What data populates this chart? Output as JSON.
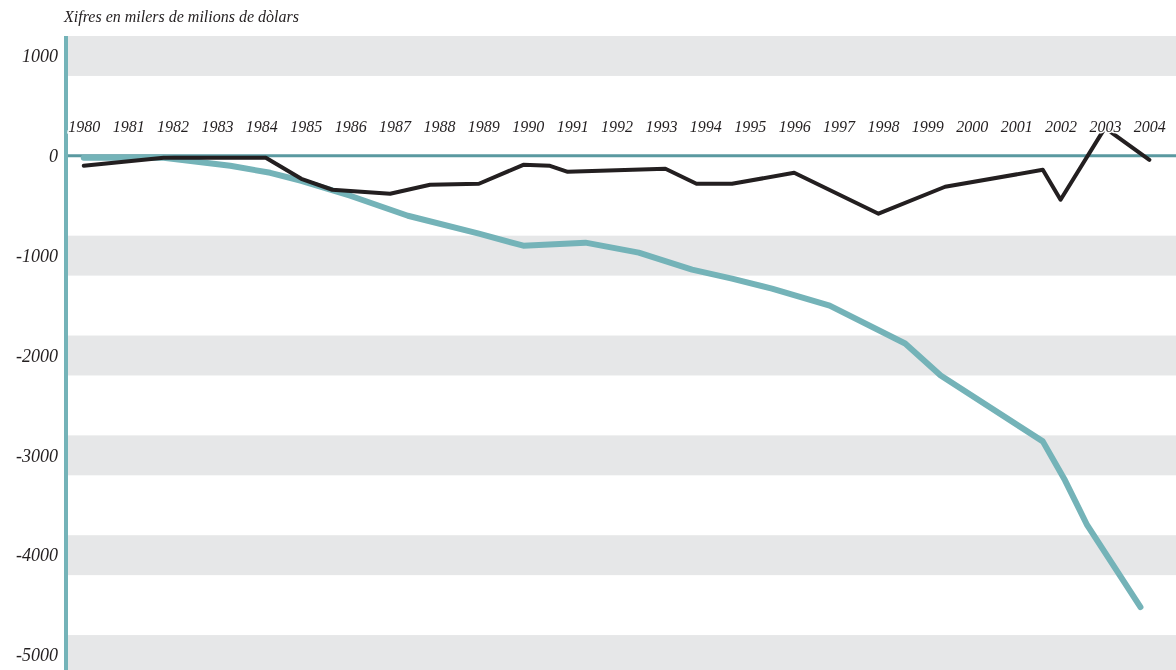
{
  "chart_data": {
    "type": "line",
    "ylabel": "Xifres en milers de milions de dòlars",
    "xlim": [
      1979.6,
      2004.6
    ],
    "xticks": [
      1980,
      1981,
      1982,
      1983,
      1984,
      1985,
      1986,
      1987,
      1988,
      1989,
      1990,
      1991,
      1992,
      1993,
      1994,
      1995,
      1996,
      1997,
      1998,
      1999,
      2000,
      2001,
      2002,
      2003,
      2004
    ],
    "ylim": [
      -5150,
      1200
    ],
    "yticks": [
      1000,
      0,
      -1000,
      -2000,
      -3000,
      -4000,
      -5000
    ],
    "bands": [
      {
        "axis": "y",
        "from": 800,
        "to": 1200,
        "color": "#e6e7e8"
      },
      {
        "axis": "y",
        "from": -1200,
        "to": -800,
        "color": "#e6e7e8"
      },
      {
        "axis": "y",
        "from": -2200,
        "to": -1800,
        "color": "#e6e7e8"
      },
      {
        "axis": "y",
        "from": -3200,
        "to": -2800,
        "color": "#e6e7e8"
      },
      {
        "axis": "y",
        "from": -4200,
        "to": -3800,
        "color": "#e6e7e8"
      },
      {
        "axis": "y",
        "from": -5150,
        "to": -4800,
        "color": "#e6e7e8"
      }
    ],
    "series": [
      {
        "color": "#74b3b8",
        "x": [
          1980,
          1981.8,
          1983.3,
          1984.2,
          1984.9,
          1986,
          1987.3,
          1988.9,
          1989.9,
          1991.3,
          1992.5,
          1993.7,
          1994.6,
          1995.5,
          1996.8,
          1998.5,
          1999.3,
          2001.6,
          2002.1,
          2002.6,
          2003.8
        ],
        "values": [
          -20,
          -20,
          -100,
          -170,
          -250,
          -400,
          -600,
          -780,
          -900,
          -870,
          -970,
          -1140,
          -1230,
          -1330,
          -1500,
          -1880,
          -2200,
          -2860,
          -3250,
          -3700,
          -4520
        ]
      },
      {
        "color": "#231f20",
        "x": [
          1980,
          1981.8,
          1984.1,
          1984.9,
          1985.6,
          1986.9,
          1987.8,
          1988.9,
          1989.9,
          1990.5,
          1990.9,
          1993.1,
          1993.8,
          1994.6,
          1996,
          1997.9,
          1999.4,
          2001.6,
          2002,
          2003,
          2004
        ],
        "values": [
          -100,
          -20,
          -20,
          -230,
          -340,
          -380,
          -290,
          -280,
          -90,
          -100,
          -160,
          -130,
          -280,
          -280,
          -170,
          -580,
          -310,
          -140,
          -440,
          280,
          -40
        ]
      }
    ],
    "grid": false,
    "marker": "none",
    "line_style": "solid"
  }
}
